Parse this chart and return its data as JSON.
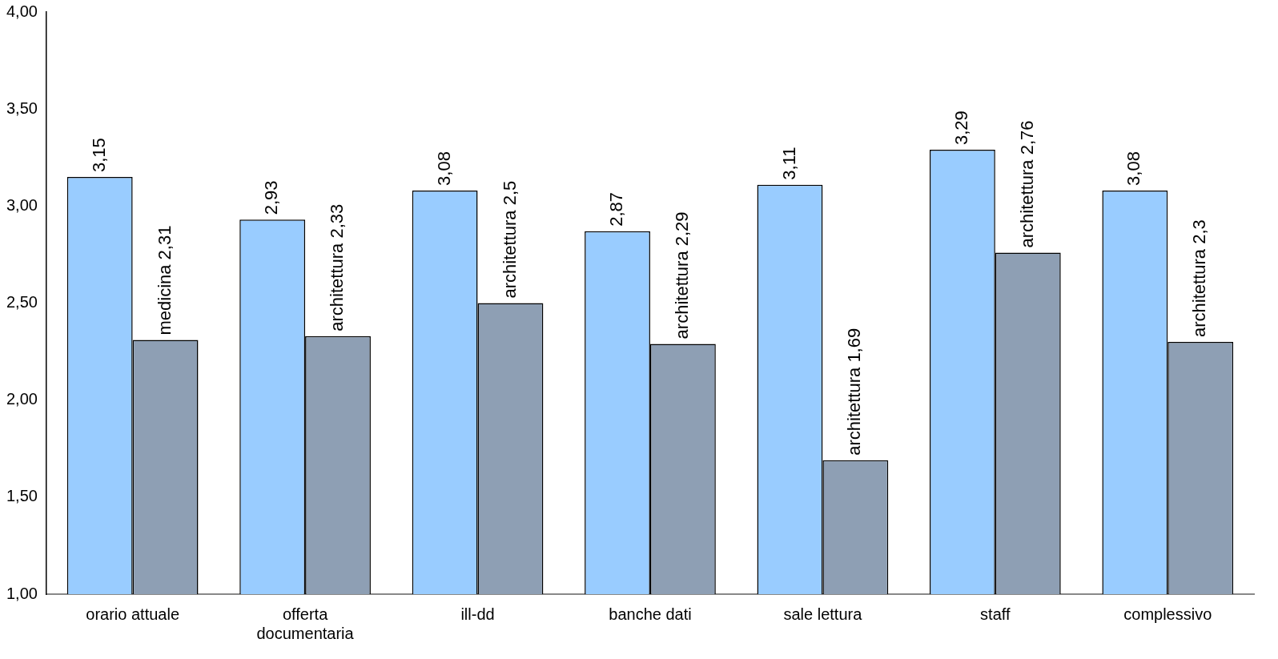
{
  "chart_data": {
    "type": "bar",
    "categories": [
      "orario attuale",
      "offerta documentaria",
      "ill-dd",
      "banche dati",
      "sale lettura",
      "staff",
      "complessivo"
    ],
    "series": [
      {
        "color": "#99ccff",
        "values": [
          3.15,
          2.93,
          3.08,
          2.87,
          3.11,
          3.29,
          3.08
        ],
        "value_labels": [
          "3,15",
          "2,93",
          "3,08",
          "2,87",
          "3,11",
          "3,29",
          "3,08"
        ]
      },
      {
        "color": "#8e9fb4",
        "values": [
          2.31,
          2.33,
          2.5,
          2.29,
          1.69,
          2.76,
          2.3
        ],
        "value_labels": [
          "medicina 2,31",
          "architettura 2,33",
          "architettura 2,5",
          "architettura 2,29",
          "architettura 1,69",
          "architettura 2,76",
          "architettura 2,3"
        ]
      }
    ],
    "ylim": [
      1,
      4
    ],
    "yticks": [
      {
        "value": 1,
        "label": "1,00"
      },
      {
        "value": 1.5,
        "label": "1,50"
      },
      {
        "value": 2,
        "label": "2,00"
      },
      {
        "value": 2.5,
        "label": "2,50"
      },
      {
        "value": 3,
        "label": "3,00"
      },
      {
        "value": 3.5,
        "label": "3,50"
      },
      {
        "value": 4,
        "label": "4,00"
      }
    ],
    "grid": false,
    "legend": false
  }
}
